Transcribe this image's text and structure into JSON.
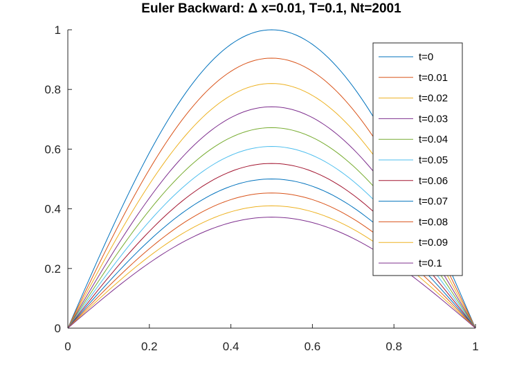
{
  "chart_data": {
    "type": "line",
    "title": "Euler Backward: Δ x=0.01, T=0.1, Nt=2001",
    "xlabel": "",
    "ylabel": "",
    "xlim": [
      0,
      1
    ],
    "ylim": [
      0,
      1
    ],
    "x_ticks": [
      "0",
      "0.2",
      "0.4",
      "0.6",
      "0.8",
      "1"
    ],
    "y_ticks": [
      "0",
      "0.2",
      "0.4",
      "0.6",
      "0.8",
      "1"
    ],
    "grid": false,
    "legend_position": "top-right",
    "curve_shape": "peak · sin(πx), zero at x=0 and x=1, maximum at x=0.5",
    "series": [
      {
        "name": "t=0",
        "color": "#0072bd",
        "peak": 1.0
      },
      {
        "name": "t=0.01",
        "color": "#d95319",
        "peak": 0.905
      },
      {
        "name": "t=0.02",
        "color": "#edb120",
        "peak": 0.82
      },
      {
        "name": "t=0.03",
        "color": "#7e2f8e",
        "peak": 0.742
      },
      {
        "name": "t=0.04",
        "color": "#77ac30",
        "peak": 0.672
      },
      {
        "name": "t=0.05",
        "color": "#4dbeee",
        "peak": 0.609
      },
      {
        "name": "t=0.06",
        "color": "#a2142f",
        "peak": 0.552
      },
      {
        "name": "t=0.07",
        "color": "#0072bd",
        "peak": 0.5
      },
      {
        "name": "t=0.08",
        "color": "#d95319",
        "peak": 0.453
      },
      {
        "name": "t=0.09",
        "color": "#edb120",
        "peak": 0.41
      },
      {
        "name": "t=0.1",
        "color": "#7e2f8e",
        "peak": 0.372
      }
    ]
  }
}
